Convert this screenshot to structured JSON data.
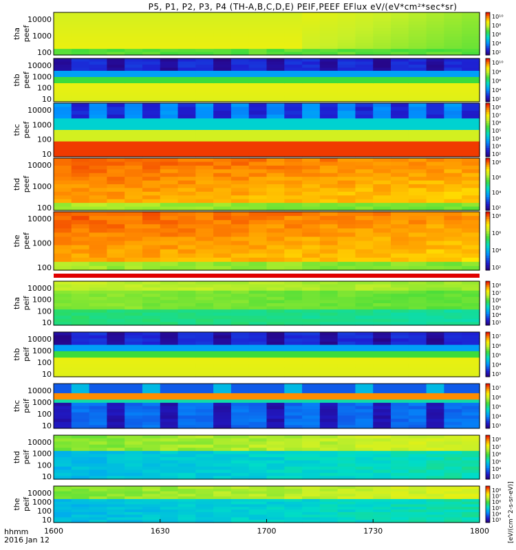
{
  "title": "P5, P1, P2, P3, P4 (TH-A,B,C,D,E) PEIF,PEEF EFlux eV/(eV*cm²*sec*sr)",
  "x_axis": {
    "time_label": "hhmm",
    "date_label": "2016 Jan 12",
    "ticks": [
      "1600",
      "1630",
      "1700",
      "1730",
      "1800"
    ]
  },
  "colorbar_unit_text": "[eV/(cm^2-s-sr-eV)]",
  "chart_data": {
    "type": "heatmap",
    "x_range": [
      "16:00",
      "18:00"
    ],
    "y_scale": "log",
    "colormap": "rainbow",
    "panels": [
      {
        "label": [
          "tha",
          "peef"
        ],
        "y_ticks": [
          "10000",
          "1000",
          "100"
        ],
        "cbar_ticks": [
          "10¹⁰",
          "10⁸",
          "10⁶",
          "10⁴",
          "10²"
        ],
        "pattern": "flat-yellow-green"
      },
      {
        "label": [
          "thb",
          "peef"
        ],
        "y_ticks": [
          "10000",
          "1000",
          "100",
          "10"
        ],
        "cbar_ticks": [
          "10¹⁰",
          "10⁸",
          "10⁶",
          "10⁴",
          "10²"
        ],
        "pattern": "banded"
      },
      {
        "label": [
          "thc",
          "peef"
        ],
        "y_ticks": [
          "10000",
          "1000",
          "100",
          "10"
        ],
        "cbar_ticks": [
          "10⁸",
          "10⁷",
          "10⁶",
          "10⁵",
          "10⁴",
          "10³",
          "10²"
        ],
        "pattern": "banded-red"
      },
      {
        "label": [
          "thd",
          "peef"
        ],
        "y_ticks": [
          "10000",
          "1000",
          "100"
        ],
        "cbar_ticks": [
          "10⁸",
          "10⁶",
          "10⁴",
          "10²"
        ],
        "pattern": "hot"
      },
      {
        "label": [
          "the",
          "peef"
        ],
        "y_ticks": [
          "10000",
          "1000",
          "100"
        ],
        "cbar_ticks": [
          "10⁸",
          "10⁶",
          "10⁴",
          "10²"
        ],
        "pattern": "hot"
      },
      {
        "label": [
          "tha",
          "peif"
        ],
        "y_ticks": [
          "10000",
          "1000",
          "100",
          "10"
        ],
        "cbar_ticks": [
          "10⁸",
          "10⁷",
          "10⁶",
          "10⁵",
          "10⁴",
          "10³"
        ],
        "pattern": "ion-green"
      },
      {
        "label": [
          "thb",
          "peif"
        ],
        "y_ticks": [
          "10000",
          "1000",
          "100",
          "10"
        ],
        "cbar_ticks": [
          "10⁷",
          "10⁶",
          "10⁵",
          "10⁴",
          "10³"
        ],
        "pattern": "banded"
      },
      {
        "label": [
          "thc",
          "peif"
        ],
        "y_ticks": [
          "10000",
          "1000",
          "100",
          "10"
        ],
        "cbar_ticks": [
          "10⁷",
          "10⁶",
          "10⁵",
          "10⁴",
          "10³"
        ],
        "pattern": "banded-top"
      },
      {
        "label": [
          "thd",
          "peif"
        ],
        "y_ticks": [
          "10000",
          "1000",
          "100",
          "10"
        ],
        "cbar_ticks": [
          "10⁸",
          "10⁷",
          "10⁶",
          "10⁵",
          "10⁴",
          "10³"
        ],
        "pattern": "ion-blue"
      },
      {
        "label": [
          "the",
          "peif"
        ],
        "y_ticks": [
          "10000",
          "1000",
          "100",
          "10"
        ],
        "cbar_ticks": [
          "10⁸",
          "10⁷",
          "10⁶",
          "10⁵",
          "10⁴",
          "10³"
        ],
        "pattern": "ion-blue"
      }
    ]
  }
}
